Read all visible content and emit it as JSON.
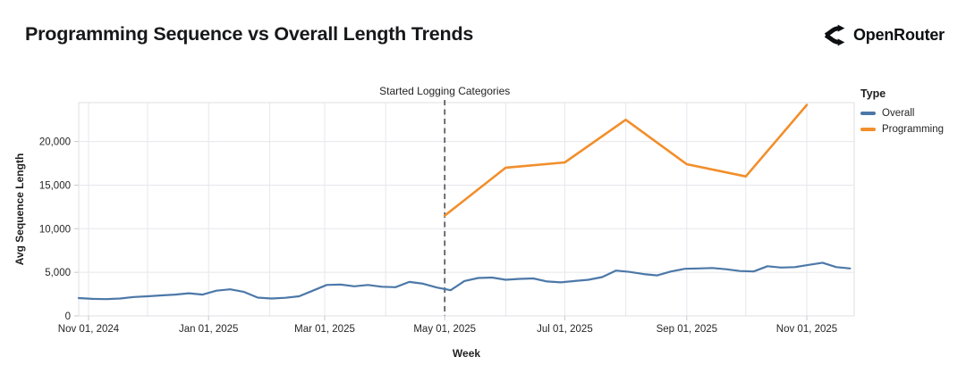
{
  "header": {
    "title": "Programming Sequence vs Overall Length Trends",
    "brand": "OpenRouter"
  },
  "chart_data": {
    "type": "line",
    "title": "Programming Sequence vs Overall Length Trends",
    "xlabel": "Week",
    "ylabel": "Avg Sequence Length",
    "x_domain": [
      "2024-10-27",
      "2025-11-25"
    ],
    "ylim": [
      0,
      24500
    ],
    "grid": true,
    "yticks": [
      {
        "value": 0,
        "label": "0"
      },
      {
        "value": 5000,
        "label": "5,000"
      },
      {
        "value": 10000,
        "label": "10,000"
      },
      {
        "value": 15000,
        "label": "15,000"
      },
      {
        "value": 20000,
        "label": "20,000"
      }
    ],
    "xticks": [
      {
        "date": "2024-11-01",
        "label": "Nov 01, 2024"
      },
      {
        "date": "2025-01-01",
        "label": "Jan 01, 2025"
      },
      {
        "date": "2025-03-01",
        "label": "Mar 01, 2025"
      },
      {
        "date": "2025-05-01",
        "label": "May 01, 2025"
      },
      {
        "date": "2025-07-01",
        "label": "Jul 01, 2025"
      },
      {
        "date": "2025-09-01",
        "label": "Sep 01, 2025"
      },
      {
        "date": "2025-11-01",
        "label": "Nov 01, 2025"
      }
    ],
    "annotation": {
      "label": "Started Logging Categories",
      "date": "2025-05-01",
      "style": "dashed-vertical-line"
    },
    "legend": {
      "title": "Type",
      "position": "right",
      "entries": [
        {
          "label": "Overall",
          "color": "#4c78a8"
        },
        {
          "label": "Programming",
          "color": "#f28e2b"
        }
      ]
    },
    "series": [
      {
        "name": "Overall",
        "color": "#4c78a8",
        "points": [
          [
            "2024-10-27",
            2050
          ],
          [
            "2024-11-03",
            1950
          ],
          [
            "2024-11-10",
            1925
          ],
          [
            "2024-11-17",
            2000
          ],
          [
            "2024-11-24",
            2175
          ],
          [
            "2024-12-01",
            2250
          ],
          [
            "2024-12-08",
            2350
          ],
          [
            "2024-12-15",
            2450
          ],
          [
            "2024-12-22",
            2600
          ],
          [
            "2024-12-29",
            2450
          ],
          [
            "2025-01-05",
            2900
          ],
          [
            "2025-01-12",
            3050
          ],
          [
            "2025-01-19",
            2750
          ],
          [
            "2025-01-26",
            2100
          ],
          [
            "2025-02-02",
            2000
          ],
          [
            "2025-02-09",
            2075
          ],
          [
            "2025-02-16",
            2250
          ],
          [
            "2025-02-23",
            2900
          ],
          [
            "2025-03-02",
            3550
          ],
          [
            "2025-03-09",
            3600
          ],
          [
            "2025-03-16",
            3400
          ],
          [
            "2025-03-23",
            3550
          ],
          [
            "2025-03-30",
            3350
          ],
          [
            "2025-04-06",
            3300
          ],
          [
            "2025-04-13",
            3900
          ],
          [
            "2025-04-20",
            3700
          ],
          [
            "2025-04-27",
            3250
          ],
          [
            "2025-05-04",
            2950
          ],
          [
            "2025-05-11",
            4000
          ],
          [
            "2025-05-18",
            4350
          ],
          [
            "2025-05-25",
            4400
          ],
          [
            "2025-06-01",
            4150
          ],
          [
            "2025-06-08",
            4250
          ],
          [
            "2025-06-15",
            4300
          ],
          [
            "2025-06-22",
            3950
          ],
          [
            "2025-06-29",
            3850
          ],
          [
            "2025-07-06",
            4000
          ],
          [
            "2025-07-13",
            4150
          ],
          [
            "2025-07-20",
            4450
          ],
          [
            "2025-07-27",
            5200
          ],
          [
            "2025-08-03",
            5050
          ],
          [
            "2025-08-10",
            4800
          ],
          [
            "2025-08-17",
            4650
          ],
          [
            "2025-08-24",
            5100
          ],
          [
            "2025-08-31",
            5400
          ],
          [
            "2025-09-07",
            5450
          ],
          [
            "2025-09-14",
            5500
          ],
          [
            "2025-09-21",
            5350
          ],
          [
            "2025-09-28",
            5150
          ],
          [
            "2025-10-05",
            5100
          ],
          [
            "2025-10-12",
            5700
          ],
          [
            "2025-10-19",
            5550
          ],
          [
            "2025-10-26",
            5600
          ],
          [
            "2025-11-02",
            5850
          ],
          [
            "2025-11-09",
            6100
          ],
          [
            "2025-11-16",
            5600
          ],
          [
            "2025-11-23",
            5450
          ]
        ]
      },
      {
        "name": "Programming",
        "color": "#f28e2b",
        "points": [
          [
            "2025-05-01",
            11500
          ],
          [
            "2025-06-01",
            17000
          ],
          [
            "2025-07-01",
            17600
          ],
          [
            "2025-08-01",
            22500
          ],
          [
            "2025-09-01",
            17400
          ],
          [
            "2025-10-01",
            16000
          ],
          [
            "2025-11-01",
            24200
          ]
        ]
      }
    ]
  }
}
